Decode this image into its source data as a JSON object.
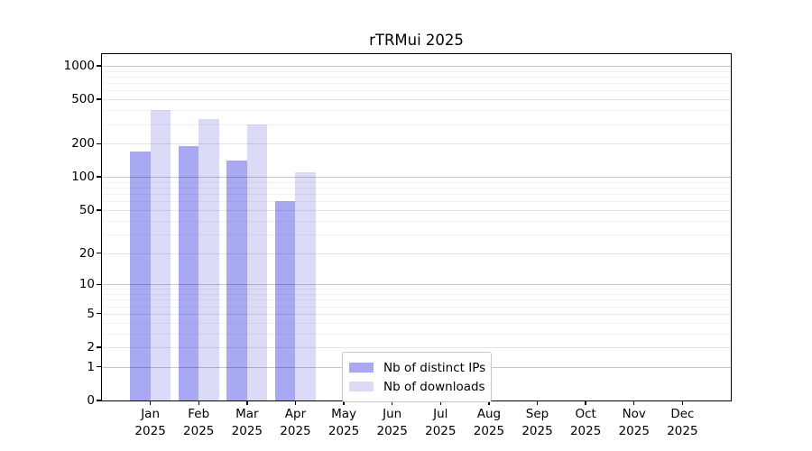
{
  "chart_data": {
    "type": "bar",
    "title": "rTRMui 2025",
    "categories": [
      "Jan",
      "Feb",
      "Mar",
      "Apr",
      "May",
      "Jun",
      "Jul",
      "Aug",
      "Sep",
      "Oct",
      "Nov",
      "Dec"
    ],
    "year_label": "2025",
    "series": [
      {
        "name": "Nb of distinct IPs",
        "color": "#a9a9f3",
        "values": [
          170,
          190,
          140,
          60,
          0,
          0,
          0,
          0,
          0,
          0,
          0,
          0
        ]
      },
      {
        "name": "Nb of downloads",
        "color": "#dbdbf8",
        "values": [
          400,
          330,
          300,
          110,
          0,
          0,
          0,
          0,
          0,
          0,
          0,
          0
        ]
      }
    ],
    "yticks": [
      0,
      1,
      2,
      5,
      10,
      20,
      50,
      100,
      200,
      500,
      1000
    ],
    "scale": "log10(1+v)",
    "ylim": [
      0,
      1275
    ],
    "grid": true,
    "legend_position": "lower-center",
    "xlabel": "",
    "ylabel": ""
  },
  "colors": {
    "decade_gridline": "rgba(0,0,0,0.22)",
    "labeled_gridline": "rgba(0,0,0,0.10)",
    "minor_gridline": "rgba(0,0,0,0.05)",
    "axis": "#000000",
    "background": "#ffffff"
  }
}
